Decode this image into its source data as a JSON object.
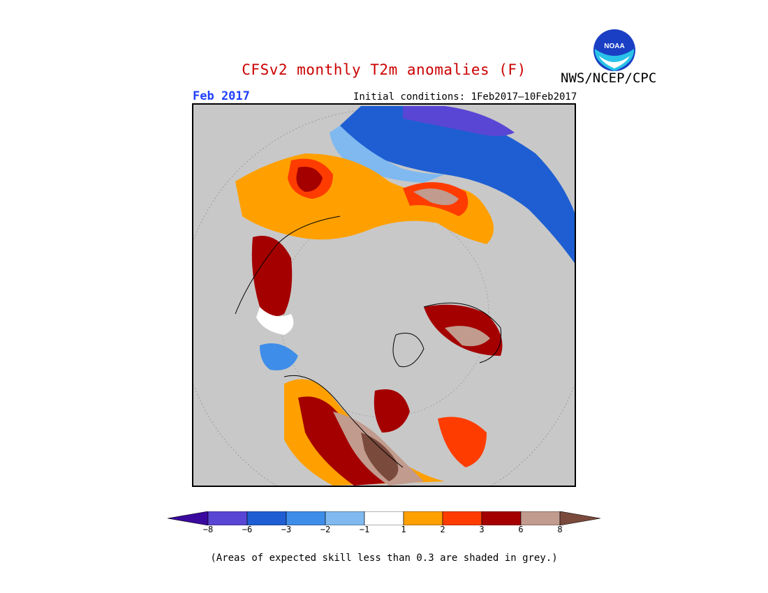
{
  "title": "CFSv2 monthly T2m anomalies (F)",
  "agency": "NWS/NCEP/CPC",
  "logo_text": "NOAA",
  "period": "Feb 2017",
  "initial_conditions": "Initial conditions: 1Feb2017–10Feb2017",
  "footnote": "(Areas of expected skill less than 0.3 are shaded in grey.)",
  "colors": {
    "title": "#cc0000",
    "period": "#1f3fff",
    "grey_no_skill": "#c8c8c8",
    "ocean_circle_boundary": "#888888"
  },
  "legend": {
    "ticks": [
      "−8",
      "−6",
      "−3",
      "−2",
      "−1",
      "1",
      "2",
      "3",
      "6",
      "8"
    ],
    "colors": [
      "#3a0a9e",
      "#5a46d4",
      "#1e5ed2",
      "#3e8de8",
      "#7fb9f0",
      "#ffffff",
      "#ffa000",
      "#ff3c00",
      "#a50000",
      "#c19b8e",
      "#7a4a3c"
    ]
  }
}
